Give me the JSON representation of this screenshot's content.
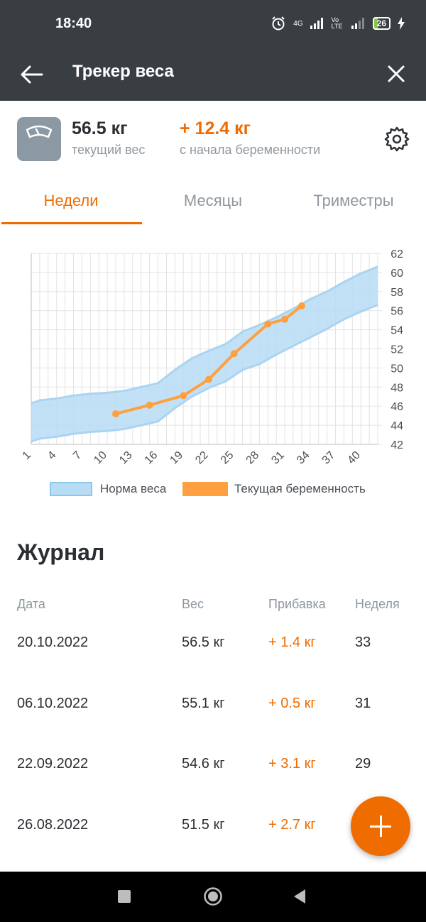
{
  "status_bar": {
    "time": "18:40",
    "network_1": "4G",
    "network_2": "Vo LTE",
    "battery": "26",
    "icons": [
      "alarm-icon",
      "signal-icon",
      "signal-icon",
      "battery-icon",
      "charging-icon"
    ]
  },
  "app_bar": {
    "title": "Трекер веса",
    "back_icon": "arrow-left-icon",
    "close_icon": "close-icon"
  },
  "summary": {
    "current_weight": "56.5 кг",
    "current_label": "текущий вес",
    "gain": "+ 12.4 кг",
    "gain_label": "с начала беременности",
    "settings_icon": "gear-icon"
  },
  "tabs": [
    {
      "label": "Недели",
      "active": true
    },
    {
      "label": "Месяцы",
      "active": false
    },
    {
      "label": "Триместры",
      "active": false
    }
  ],
  "chart_data": {
    "type": "area",
    "x_ticks": [
      1,
      4,
      7,
      10,
      13,
      16,
      19,
      22,
      25,
      28,
      31,
      34,
      37,
      40
    ],
    "y_ticks": [
      42,
      44,
      46,
      48,
      50,
      52,
      54,
      56,
      58,
      60,
      62
    ],
    "xlim": [
      1,
      42
    ],
    "ylim": [
      42,
      62
    ],
    "grid": true,
    "legend_placement": "bottom",
    "series": [
      {
        "name": "Норма веса",
        "type": "band",
        "color": "#b9dcf5",
        "x": [
          1,
          2,
          4,
          6,
          8,
          10,
          12,
          14,
          16,
          18,
          20,
          22,
          24,
          26,
          28,
          30,
          32,
          34,
          36,
          38,
          40,
          42
        ],
        "upper": [
          46.3,
          46.6,
          46.8,
          47.1,
          47.3,
          47.4,
          47.6,
          48.0,
          48.4,
          49.8,
          51.0,
          51.8,
          52.5,
          53.8,
          54.5,
          55.3,
          56.2,
          57.2,
          58.0,
          59.0,
          59.9,
          60.6
        ],
        "lower": [
          42.3,
          42.6,
          42.8,
          43.1,
          43.3,
          43.4,
          43.6,
          44.0,
          44.4,
          45.8,
          47.0,
          47.9,
          48.6,
          49.8,
          50.4,
          51.4,
          52.3,
          53.2,
          54.1,
          55.1,
          55.9,
          56.6
        ]
      },
      {
        "name": "Текущая беременность",
        "type": "line",
        "color": "#ffa040",
        "x": [
          11,
          15,
          19,
          22,
          25,
          29,
          31,
          33
        ],
        "y": [
          45.2,
          46.1,
          47.1,
          48.8,
          51.5,
          54.6,
          55.1,
          56.5
        ]
      }
    ]
  },
  "legend": {
    "norm": "Норма веса",
    "current": "Текущая беременность"
  },
  "journal": {
    "title": "Журнал",
    "headers": {
      "date": "Дата",
      "weight": "Вес",
      "gain": "Прибавка",
      "week": "Неделя"
    },
    "rows": [
      {
        "date": "20.10.2022",
        "weight": "56.5 кг",
        "gain": "+ 1.4 кг",
        "week": "33"
      },
      {
        "date": "06.10.2022",
        "weight": "55.1 кг",
        "gain": "+ 0.5 кг",
        "week": "31"
      },
      {
        "date": "22.09.2022",
        "weight": "54.6 кг",
        "gain": "+ 3.1 кг",
        "week": "29"
      },
      {
        "date": "26.08.2022",
        "weight": "51.5 кг",
        "gain": "+ 2.7 кг",
        "week": ""
      }
    ]
  },
  "fab": {
    "icon": "plus-icon"
  },
  "colors": {
    "accent": "#ef6c00",
    "appbar": "#393e43",
    "norm_band": "#b9dcf5",
    "line": "#ffa040"
  }
}
